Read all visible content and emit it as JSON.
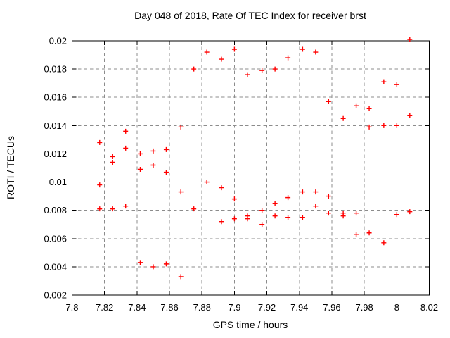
{
  "colors": {
    "background": "#ffffff",
    "border": "#000000",
    "grid": "#8c8c8c",
    "text": "#000000",
    "marker": "#ff0000"
  },
  "chart_data": {
    "type": "scatter",
    "title": "Day 048 of 2018, Rate Of TEC Index for receiver brst",
    "xlabel": "GPS time / hours",
    "ylabel": "ROTI / TECUs",
    "xlim": [
      7.8,
      8.02
    ],
    "ylim": [
      0.002,
      0.02
    ],
    "grid": true,
    "legend": "none",
    "marker": {
      "shape": "plus",
      "color": "#ff0000",
      "size": 7
    },
    "xticks": {
      "values": [
        7.8,
        7.82,
        7.84,
        7.86,
        7.88,
        7.9,
        7.92,
        7.94,
        7.96,
        7.98,
        8.0,
        8.02
      ],
      "labels": [
        "7.8",
        "7.82",
        "7.84",
        "7.86",
        "7.88",
        "7.9",
        "7.92",
        "7.94",
        "7.96",
        "7.98",
        "8",
        "8.02"
      ]
    },
    "yticks": {
      "values": [
        0.002,
        0.004,
        0.006,
        0.008,
        0.01,
        0.012,
        0.014,
        0.016,
        0.018,
        0.02
      ],
      "labels": [
        "0.002",
        "0.004",
        "0.006",
        "0.008",
        "0.01",
        "0.012",
        "0.014",
        "0.016",
        "0.018",
        "0.02"
      ]
    },
    "series": [
      {
        "name": "ROTI",
        "points": [
          [
            7.817,
            0.0128
          ],
          [
            7.817,
            0.0098
          ],
          [
            7.817,
            0.0081
          ],
          [
            7.825,
            0.0118
          ],
          [
            7.825,
            0.0114
          ],
          [
            7.825,
            0.0081
          ],
          [
            7.833,
            0.0136
          ],
          [
            7.833,
            0.0124
          ],
          [
            7.833,
            0.0083
          ],
          [
            7.842,
            0.012
          ],
          [
            7.842,
            0.0109
          ],
          [
            7.842,
            0.0043
          ],
          [
            7.85,
            0.0122
          ],
          [
            7.85,
            0.0112
          ],
          [
            7.85,
            0.004
          ],
          [
            7.858,
            0.0123
          ],
          [
            7.858,
            0.0107
          ],
          [
            7.858,
            0.0042
          ],
          [
            7.867,
            0.0139
          ],
          [
            7.867,
            0.0093
          ],
          [
            7.867,
            0.0033
          ],
          [
            7.875,
            0.018
          ],
          [
            7.875,
            0.0081
          ],
          [
            7.883,
            0.0192
          ],
          [
            7.883,
            0.01
          ],
          [
            7.892,
            0.0187
          ],
          [
            7.892,
            0.0096
          ],
          [
            7.892,
            0.0072
          ],
          [
            7.9,
            0.0194
          ],
          [
            7.9,
            0.0088
          ],
          [
            7.9,
            0.0074
          ],
          [
            7.908,
            0.0176
          ],
          [
            7.908,
            0.0076
          ],
          [
            7.908,
            0.0074
          ],
          [
            7.917,
            0.0179
          ],
          [
            7.917,
            0.008
          ],
          [
            7.917,
            0.007
          ],
          [
            7.925,
            0.018
          ],
          [
            7.925,
            0.0085
          ],
          [
            7.925,
            0.0076
          ],
          [
            7.933,
            0.0188
          ],
          [
            7.933,
            0.0089
          ],
          [
            7.933,
            0.0075
          ],
          [
            7.942,
            0.0194
          ],
          [
            7.942,
            0.0093
          ],
          [
            7.942,
            0.0075
          ],
          [
            7.95,
            0.0192
          ],
          [
            7.95,
            0.0093
          ],
          [
            7.95,
            0.0083
          ],
          [
            7.958,
            0.0157
          ],
          [
            7.958,
            0.009
          ],
          [
            7.958,
            0.0078
          ],
          [
            7.967,
            0.0145
          ],
          [
            7.967,
            0.0078
          ],
          [
            7.967,
            0.0076
          ],
          [
            7.975,
            0.0154
          ],
          [
            7.975,
            0.0078
          ],
          [
            7.975,
            0.0063
          ],
          [
            7.983,
            0.0152
          ],
          [
            7.983,
            0.0139
          ],
          [
            7.983,
            0.0064
          ],
          [
            7.992,
            0.0171
          ],
          [
            7.992,
            0.014
          ],
          [
            7.992,
            0.0057
          ],
          [
            8.0,
            0.0169
          ],
          [
            8.0,
            0.014
          ],
          [
            8.0,
            0.0077
          ],
          [
            8.008,
            0.0201
          ],
          [
            8.008,
            0.0147
          ],
          [
            8.008,
            0.0079
          ]
        ]
      }
    ]
  }
}
